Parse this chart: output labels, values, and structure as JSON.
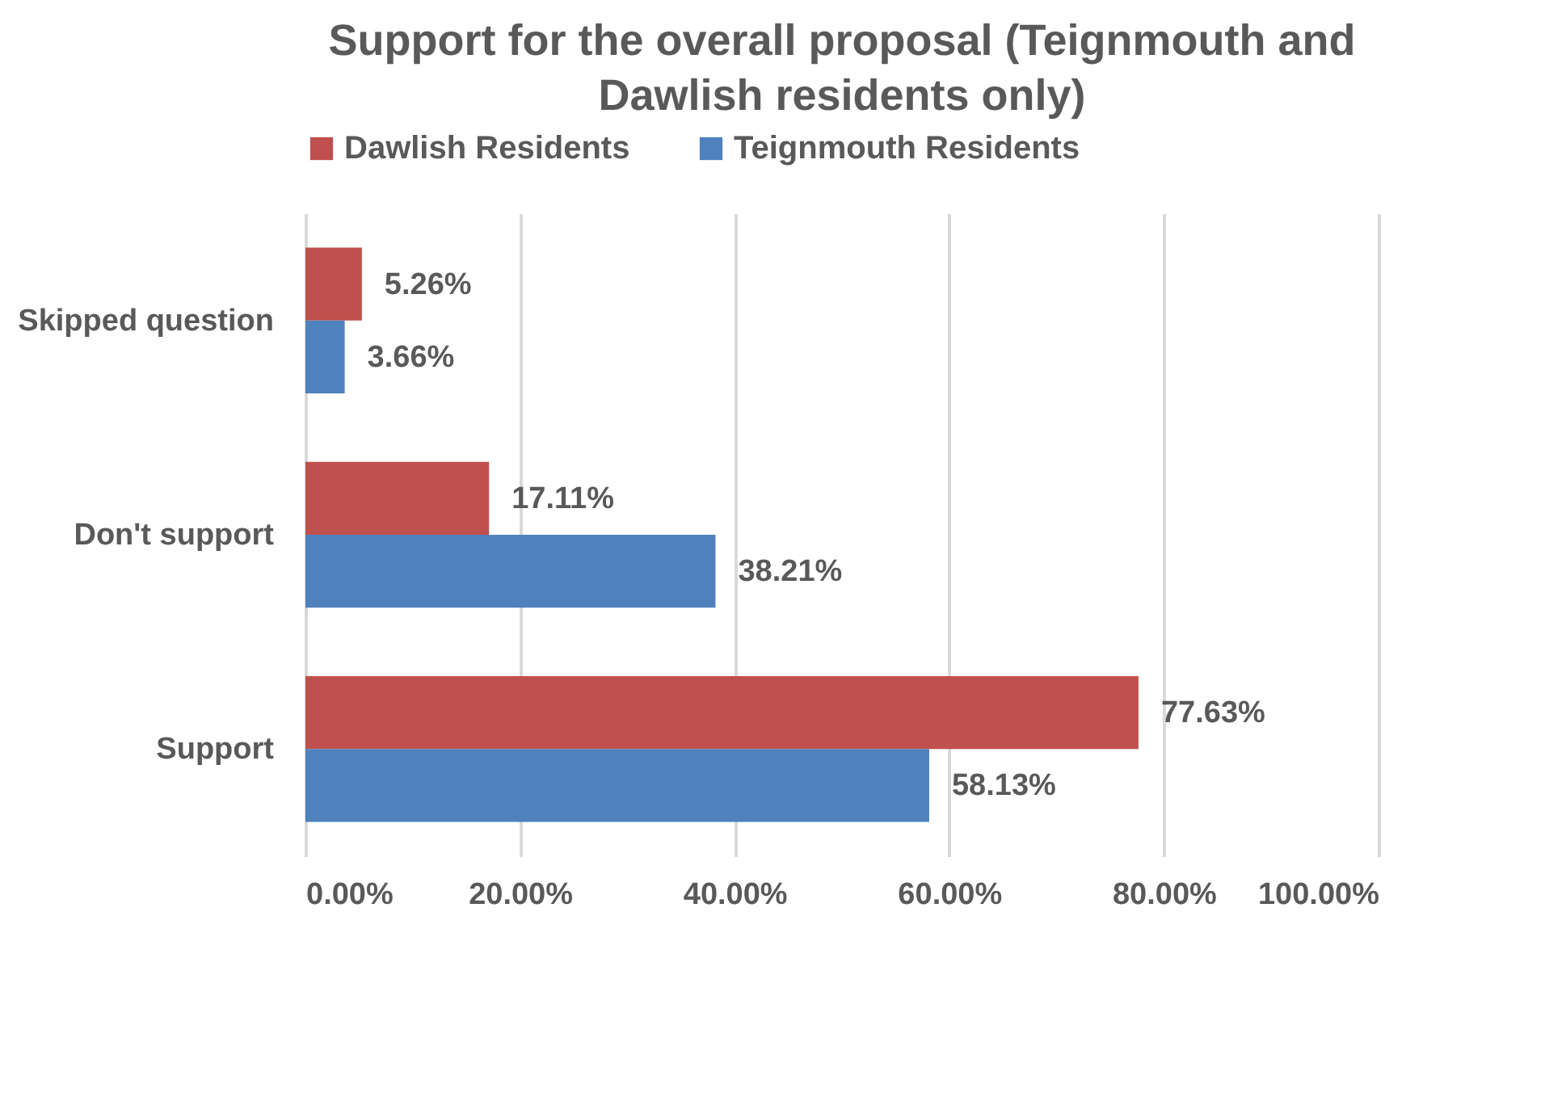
{
  "chart_data": {
    "type": "bar",
    "orientation": "horizontal",
    "title": "Support for the overall proposal (Teignmouth and Dawlish residents only)",
    "categories": [
      "Skipped question",
      "Don't support",
      "Support"
    ],
    "series": [
      {
        "name": "Dawlish Residents",
        "color": "#c0504d",
        "values": [
          5.26,
          17.11,
          77.63
        ],
        "value_labels": [
          "5.26%",
          "17.11%",
          "77.63%"
        ]
      },
      {
        "name": "Teignmouth Residents",
        "color": "#4f81bd",
        "values": [
          3.66,
          38.21,
          58.13
        ],
        "value_labels": [
          "3.66%",
          "38.21%",
          "58.13%"
        ]
      }
    ],
    "xlim": [
      0,
      100
    ],
    "xticks": [
      {
        "value": 0,
        "label": "0.00%"
      },
      {
        "value": 20,
        "label": "20.00%"
      },
      {
        "value": 40,
        "label": "40.00%"
      },
      {
        "value": 60,
        "label": "60.00%"
      },
      {
        "value": 80,
        "label": "80.00%"
      },
      {
        "value": 100,
        "label": "100.00%"
      }
    ],
    "grid": "x",
    "legend": "top"
  }
}
